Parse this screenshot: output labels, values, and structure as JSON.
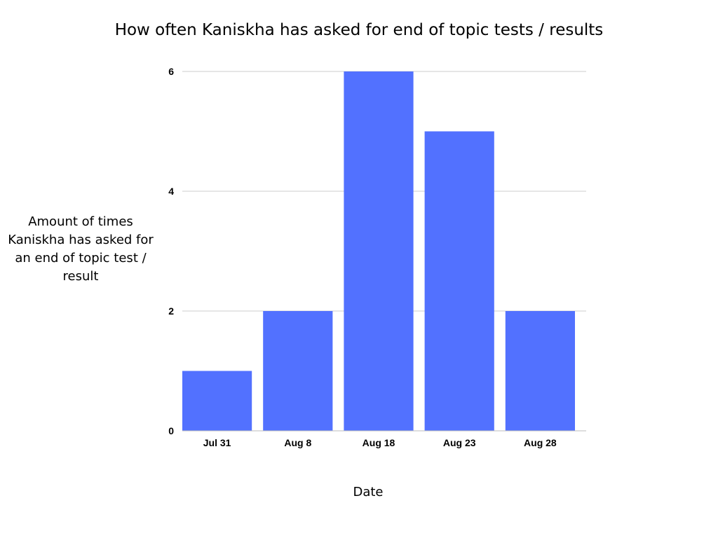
{
  "chart_data": {
    "type": "bar",
    "title": "How often Kaniskha has asked for end of topic tests / results",
    "xlabel": "Date",
    "ylabel": "Amount of times Kaniskha has asked for an end of topic test / result",
    "categories": [
      "Jul 31",
      "Aug 8",
      "Aug 18",
      "Aug 23",
      "Aug 28"
    ],
    "values": [
      1,
      2,
      6,
      5,
      2
    ],
    "ylim": [
      0,
      6
    ],
    "yticks": [
      0,
      2,
      4,
      6
    ],
    "grid": true,
    "legend": "none",
    "colors": {
      "bar": "#5271ff",
      "grid": "#cccccc",
      "axis": "#bbbbbb"
    }
  }
}
